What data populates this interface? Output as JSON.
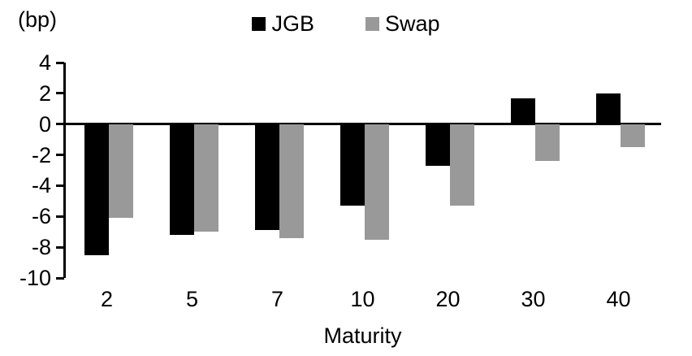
{
  "unit_label": "(bp)",
  "chart_data": {
    "type": "bar",
    "title": "",
    "xlabel": "Maturity",
    "ylabel": "(bp)",
    "categories": [
      "2",
      "5",
      "7",
      "10",
      "20",
      "30",
      "40"
    ],
    "series": [
      {
        "name": "JGB",
        "color": "#000000",
        "values": [
          -8.5,
          -7.2,
          -6.9,
          -5.3,
          -2.7,
          1.7,
          2.0
        ]
      },
      {
        "name": "Swap",
        "color": "#999999",
        "values": [
          -6.1,
          -7.0,
          -7.4,
          -7.5,
          -5.3,
          -2.4,
          -1.5
        ]
      }
    ],
    "ylim": [
      -10,
      4
    ],
    "ytick_step": 2,
    "grid": false,
    "legend_position": "top-center",
    "axis_color": "#000000"
  }
}
